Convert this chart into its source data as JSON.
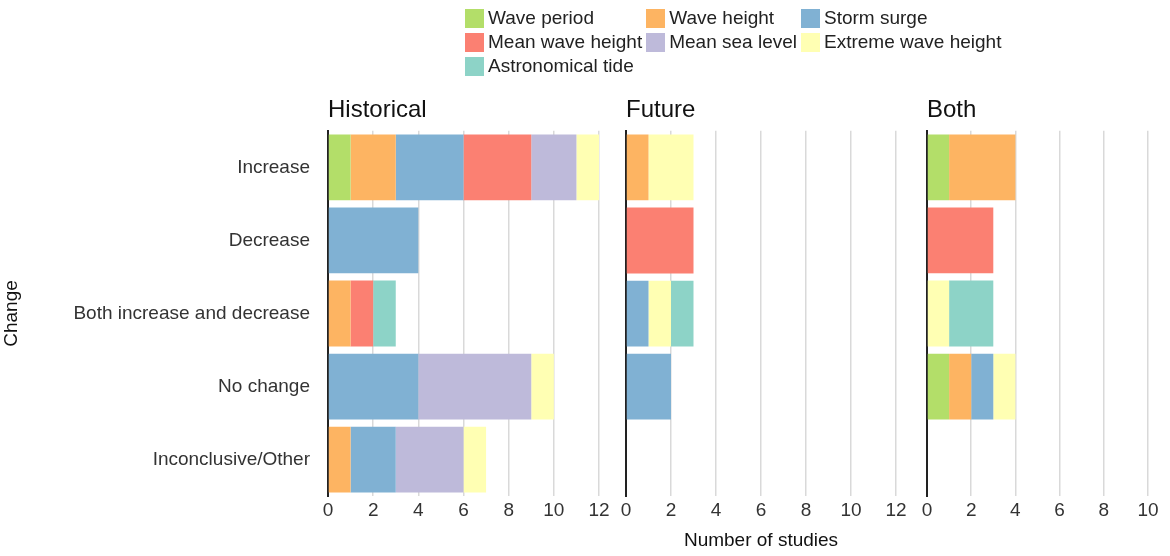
{
  "chart_data": [
    {
      "type": "bar",
      "orientation": "horizontal",
      "stacked": true,
      "title": "Historical",
      "ylabel": "Change",
      "legend": "top",
      "grid": "x",
      "categories": [
        "Increase",
        "Decrease",
        "Both increase and decrease",
        "No change",
        "Inconclusive/Other"
      ],
      "xlim": [
        0,
        12
      ],
      "xticks": [
        0,
        2,
        4,
        6,
        8,
        10,
        12
      ],
      "series": [
        {
          "name": "Wave period",
          "color": "#b3de69",
          "values": [
            1,
            0,
            0,
            0,
            0
          ]
        },
        {
          "name": "Wave height",
          "color": "#fdb462",
          "values": [
            2,
            0,
            1,
            0,
            1
          ]
        },
        {
          "name": "Storm surge",
          "color": "#80b1d3",
          "values": [
            3,
            4,
            0,
            4,
            2
          ]
        },
        {
          "name": "Mean wave height",
          "color": "#fb8072",
          "values": [
            3,
            0,
            1,
            0,
            0
          ]
        },
        {
          "name": "Mean sea level",
          "color": "#bebada",
          "values": [
            2,
            0,
            0,
            5,
            3
          ]
        },
        {
          "name": "Extreme wave height",
          "color": "#ffffb3",
          "values": [
            1,
            0,
            0,
            1,
            1
          ]
        },
        {
          "name": "Astronomical tide",
          "color": "#8dd3c7",
          "values": [
            0,
            0,
            1,
            0,
            0
          ]
        }
      ]
    },
    {
      "type": "bar",
      "orientation": "horizontal",
      "stacked": true,
      "title": "Future",
      "xlabel": "Number of studies",
      "grid": "x",
      "tick_labels": "x",
      "categories": [
        null,
        null,
        null,
        null,
        null
      ],
      "xlim": [
        0,
        12
      ],
      "xticks": [
        0,
        2,
        4,
        6,
        8,
        10,
        12
      ],
      "series": [
        {
          "color": "#b3de69",
          "values": [
            0,
            0,
            0,
            0,
            0
          ]
        },
        {
          "color": "#fdb462",
          "values": [
            1,
            0,
            0,
            0,
            0
          ]
        },
        {
          "color": "#80b1d3",
          "values": [
            0,
            0,
            1,
            2,
            0
          ]
        },
        {
          "color": "#fb8072",
          "values": [
            0,
            3,
            0,
            0,
            0
          ]
        },
        {
          "color": "#bebada",
          "values": [
            0,
            0,
            0,
            0,
            0
          ]
        },
        {
          "color": "#ffffb3",
          "values": [
            2,
            0,
            1,
            0,
            0
          ]
        },
        {
          "color": "#8dd3c7",
          "values": [
            0,
            0,
            1,
            0,
            0
          ]
        }
      ]
    },
    {
      "type": "bar",
      "orientation": "horizontal",
      "stacked": true,
      "title": "Both",
      "grid": "x",
      "tick_labels": "x",
      "categories": [
        null,
        null,
        null,
        null,
        null
      ],
      "xlim": [
        0,
        10
      ],
      "xticks": [
        0,
        2,
        4,
        6,
        8,
        10
      ],
      "series": [
        {
          "color": "#b3de69",
          "values": [
            1,
            0,
            0,
            1,
            0
          ]
        },
        {
          "color": "#fdb462",
          "values": [
            3,
            0,
            0,
            1,
            0
          ]
        },
        {
          "color": "#80b1d3",
          "values": [
            0,
            0,
            0,
            1,
            0
          ]
        },
        {
          "color": "#fb8072",
          "values": [
            0,
            3,
            0,
            0,
            0
          ]
        },
        {
          "color": "#bebada",
          "values": [
            0,
            0,
            0,
            0,
            0
          ]
        },
        {
          "color": "#ffffb3",
          "values": [
            0,
            0,
            1,
            1,
            0
          ]
        },
        {
          "color": "#8dd3c7",
          "values": [
            0,
            0,
            2,
            0,
            0
          ]
        }
      ]
    }
  ]
}
